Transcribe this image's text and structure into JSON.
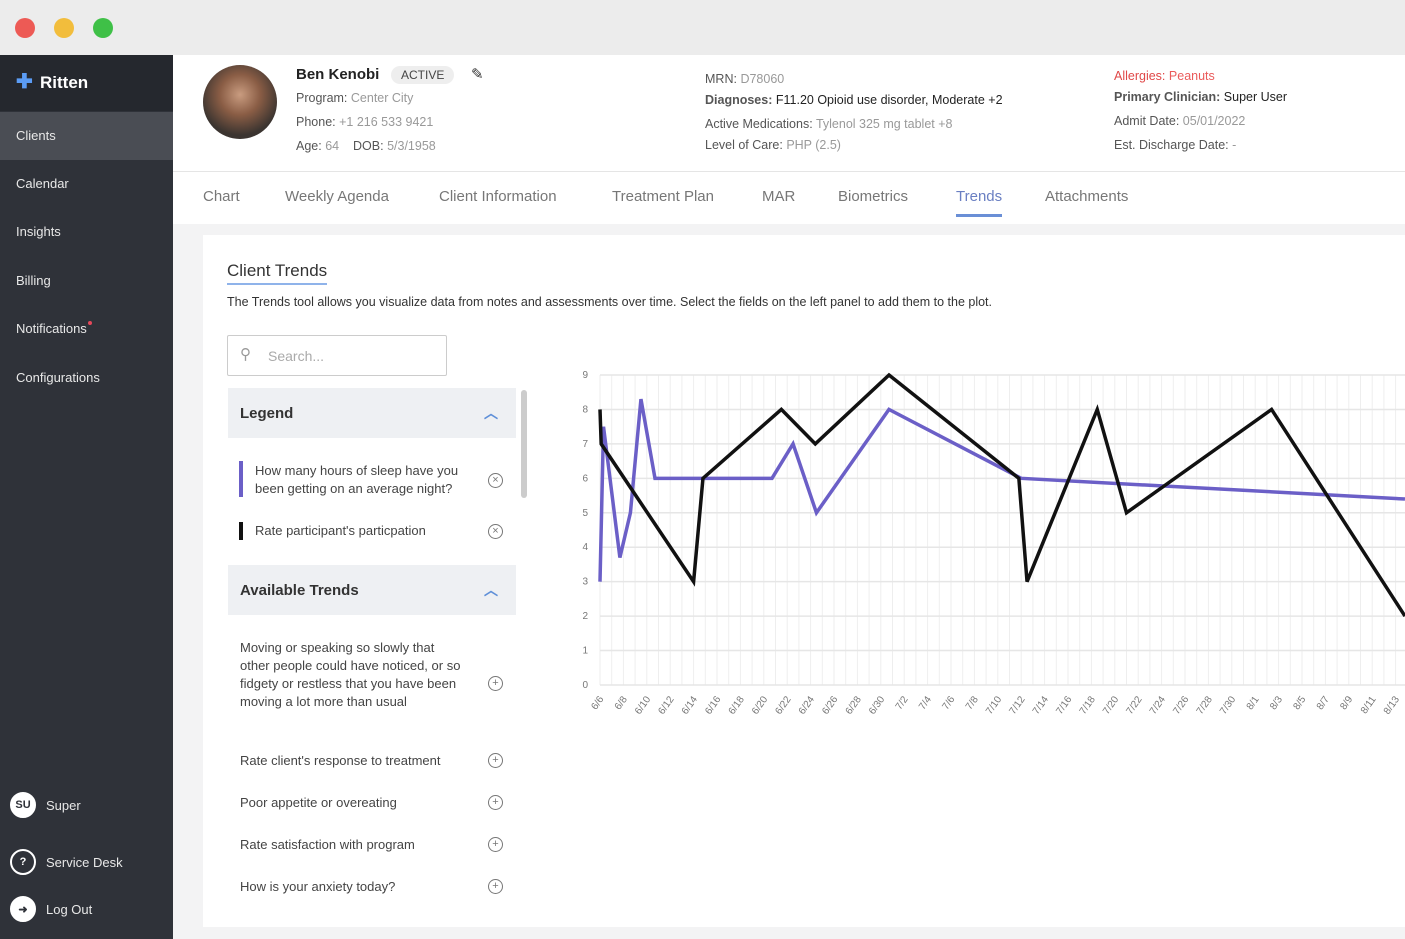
{
  "app": {
    "name": "Ritten"
  },
  "sidebar": {
    "items": [
      {
        "label": "Clients",
        "active": true
      },
      {
        "label": "Calendar"
      },
      {
        "label": "Insights"
      },
      {
        "label": "Billing"
      },
      {
        "label": "Notifications"
      },
      {
        "label": "Configurations"
      }
    ],
    "user": {
      "initials": "SU",
      "name": "Super"
    },
    "service_desk": "Service Desk",
    "logout": "Log Out"
  },
  "client": {
    "name": "Ben Kenobi",
    "status": "ACTIVE",
    "program_label": "Program:",
    "program": "Center City",
    "phone_label": "Phone:",
    "phone": "+1 216 533 9421",
    "age_label": "Age:",
    "age": "64",
    "dob_label": "DOB:",
    "dob": "5/3/1958",
    "mrn_label": "MRN:",
    "mrn": "D78060",
    "diagnoses_label": "Diagnoses:",
    "diagnoses": "F11.20 Opioid use disorder, Moderate +2",
    "meds_label": "Active Medications:",
    "meds": "Tylenol 325 mg tablet +8",
    "loc_label": "Level of Care:",
    "loc": "PHP (2.5)",
    "allergies_label": "Allergies:",
    "allergies": "Peanuts",
    "clinician_label": "Primary Clinician:",
    "clinician": "Super User",
    "admit_label": "Admit Date:",
    "admit": "05/01/2022",
    "discharge_label": "Est. Discharge Date:",
    "discharge": "-"
  },
  "tabs": [
    "Chart",
    "Weekly Agenda",
    "Client Information",
    "Treatment Plan",
    "MAR",
    "Biometrics",
    "Trends",
    "Attachments"
  ],
  "active_tab": "Trends",
  "trends": {
    "title": "Client Trends",
    "description": "The Trends tool allows you visualize data from notes and assessments over time. Select the fields on the left panel to add them to the plot.",
    "search_placeholder": "Search...",
    "legend_title": "Legend",
    "legend": [
      {
        "label": "How many hours of sleep have you been getting on an average night?",
        "color": "#6b5fc7"
      },
      {
        "label": "Rate participant's particpation",
        "color": "#111111"
      }
    ],
    "available_title": "Available Trends",
    "available": [
      "Moving or speaking so slowly that other people could have noticed, or so fidgety or restless that you have been moving a lot more than usual",
      "Rate client's response to treatment",
      "Poor appetite or overeating",
      "Rate satisfaction with program",
      "How is your anxiety today?"
    ]
  },
  "chart_data": {
    "type": "line",
    "x_unit": "days since 6/6",
    "ylim": [
      0,
      9
    ],
    "yticks": [
      0,
      1,
      2,
      3,
      4,
      5,
      6,
      7,
      8,
      9
    ],
    "xticks": [
      "6/6",
      "6/8",
      "6/10",
      "6/12",
      "6/14",
      "6/16",
      "6/18",
      "6/20",
      "6/22",
      "6/24",
      "6/26",
      "6/28",
      "6/30",
      "7/2",
      "7/4",
      "7/6",
      "7/8",
      "7/10",
      "7/12",
      "7/14",
      "7/16",
      "7/18",
      "7/20",
      "7/22",
      "7/24",
      "7/26",
      "7/28",
      "7/30",
      "8/1",
      "8/3",
      "8/5",
      "8/7",
      "8/9",
      "8/11",
      "8/13"
    ],
    "series": [
      {
        "name": "How many hours of sleep have you been getting on an average night?",
        "color": "#6b5fc7",
        "points": [
          [
            0,
            3
          ],
          [
            0.3,
            7.5
          ],
          [
            1.7,
            3.7
          ],
          [
            2.6,
            5
          ],
          [
            3.5,
            8.3
          ],
          [
            4.7,
            6
          ],
          [
            14.7,
            6
          ],
          [
            16.5,
            7
          ],
          [
            18.5,
            5
          ],
          [
            24.7,
            8
          ],
          [
            36,
            6
          ],
          [
            68.8,
            5.4
          ]
        ]
      },
      {
        "name": "Rate participant's particpation",
        "color": "#111111",
        "points": [
          [
            0,
            8
          ],
          [
            0.1,
            7
          ],
          [
            8,
            3
          ],
          [
            8.8,
            6
          ],
          [
            15.5,
            8
          ],
          [
            18.4,
            7
          ],
          [
            24.7,
            9
          ],
          [
            35.8,
            6
          ],
          [
            36.5,
            3
          ],
          [
            42.5,
            8
          ],
          [
            45,
            5
          ],
          [
            57.4,
            8
          ],
          [
            68.8,
            2
          ]
        ]
      }
    ]
  }
}
